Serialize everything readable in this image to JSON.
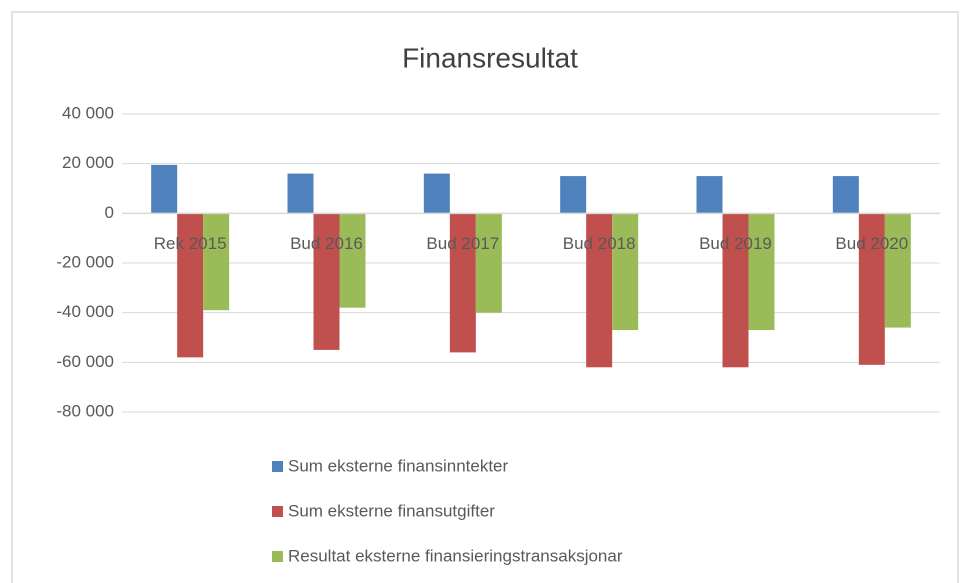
{
  "chart_data": {
    "type": "bar",
    "title": "Finansresultat",
    "categories": [
      "Rek 2015",
      "Bud 2016",
      "Bud 2017",
      "Bud 2018",
      "Bud 2019",
      "Bud 2020"
    ],
    "series": [
      {
        "name": "Sum eksterne finansinntekter",
        "color": "#4f81bd",
        "values": [
          19500,
          16000,
          16000,
          15000,
          15000,
          15000
        ]
      },
      {
        "name": "Sum eksterne finansutgifter",
        "color": "#c0504d",
        "values": [
          -58000,
          -55000,
          -56000,
          -62000,
          -62000,
          -61000
        ]
      },
      {
        "name": "Resultat eksterne finansieringstransaksjonar",
        "color": "#9bbb59",
        "values": [
          -39000,
          -38000,
          -40000,
          -47000,
          -47000,
          -46000
        ]
      }
    ],
    "ylim": [
      -80000,
      40000
    ],
    "yticks": [
      {
        "value": -80000,
        "label": "-80 000"
      },
      {
        "value": -60000,
        "label": "-60 000"
      },
      {
        "value": -40000,
        "label": "-40 000"
      },
      {
        "value": -20000,
        "label": "-20 000"
      },
      0,
      {
        "value": 20000,
        "label": "20 000"
      },
      {
        "value": 40000,
        "label": "40 000"
      }
    ],
    "grid": true,
    "legend": "bottom"
  }
}
